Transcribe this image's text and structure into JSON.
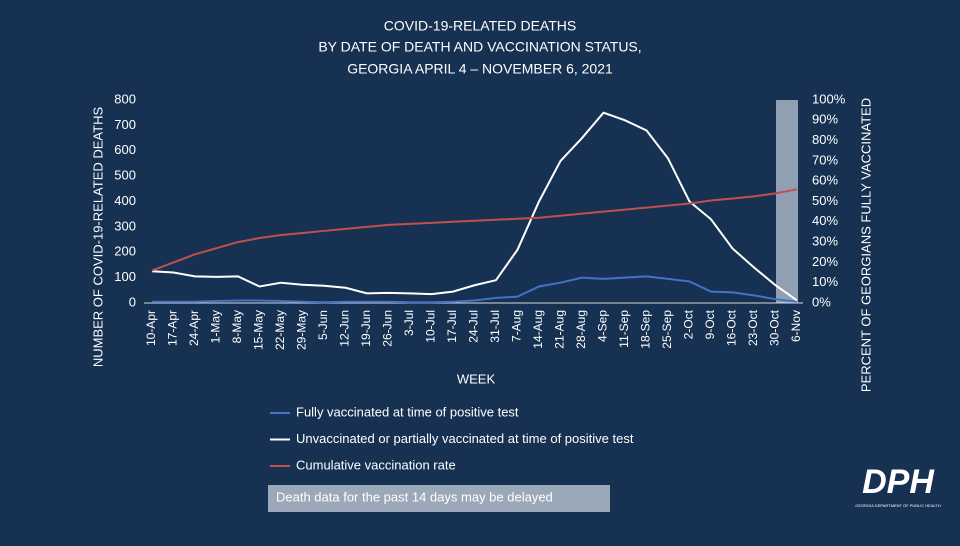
{
  "chart_data": {
    "type": "line",
    "title": [
      "COVID-19-RELATED DEATHS",
      "BY DATE OF DEATH AND VACCINATION STATUS,",
      "GEORGIA APRIL 4 – NOVEMBER 6, 2021"
    ],
    "x_label": "WEEK",
    "y_label": "NUMBER OF COVID-19-RELATED DEATHS",
    "y2_label": "PERCENT OF GEORGIANS FULLY VACCINATED",
    "categories": [
      "10-Apr",
      "17-Apr",
      "24-Apr",
      "1-May",
      "8-May",
      "15-May",
      "22-May",
      "29-May",
      "5-Jun",
      "12-Jun",
      "19-Jun",
      "26-Jun",
      "3-Jul",
      "10-Jul",
      "17-Jul",
      "24-Jul",
      "31-Jul",
      "7-Aug",
      "14-Aug",
      "21-Aug",
      "28-Aug",
      "4-Sep",
      "11-Sep",
      "18-Sep",
      "25-Sep",
      "2-Oct",
      "9-Oct",
      "16-Oct",
      "23-Oct",
      "30-Oct",
      "6-Nov"
    ],
    "series": [
      {
        "name": "Fully vaccinated at time of positive test",
        "color": "#4472c4",
        "values": [
          5,
          5,
          5,
          8,
          10,
          10,
          8,
          5,
          3,
          5,
          5,
          5,
          3,
          3,
          5,
          10,
          20,
          25,
          65,
          80,
          100,
          95,
          100,
          105,
          95,
          85,
          45,
          42,
          30,
          15,
          5
        ]
      },
      {
        "name": "Unvaccinated or partially vaccinated at time of positive test",
        "color": "#ffffff",
        "values": [
          125,
          120,
          105,
          103,
          105,
          65,
          80,
          72,
          68,
          60,
          38,
          40,
          38,
          35,
          45,
          70,
          90,
          210,
          400,
          560,
          650,
          750,
          720,
          680,
          570,
          400,
          330,
          215,
          140,
          70,
          10
        ]
      },
      {
        "name": "Cumulative vaccination rate",
        "color": "#c0504d",
        "axis": "y2",
        "values": [
          16,
          20,
          24,
          27,
          30,
          32,
          33.5,
          34.5,
          35.5,
          36.5,
          37.5,
          38.5,
          39,
          39.5,
          40,
          40.5,
          41,
          41.5,
          42,
          43,
          44,
          45,
          46,
          47,
          48,
          49,
          50.5,
          51.5,
          52.5,
          54,
          56
        ]
      }
    ],
    "ylim": [
      0,
      800
    ],
    "yticks": [
      0,
      100,
      200,
      300,
      400,
      500,
      600,
      700,
      800
    ],
    "y2lim": [
      0,
      100
    ],
    "y2ticks": [
      {
        "value": 0,
        "label": "0%"
      },
      {
        "value": 10,
        "label": "10%"
      },
      {
        "value": 20,
        "label": "20%"
      },
      {
        "value": 30,
        "label": "30%"
      },
      {
        "value": 40,
        "label": "40%"
      },
      {
        "value": 50,
        "label": "50%"
      },
      {
        "value": 60,
        "label": "60%"
      },
      {
        "value": 70,
        "label": "70%"
      },
      {
        "value": 80,
        "label": "80%"
      },
      {
        "value": 90,
        "label": "90%"
      },
      {
        "value": 100,
        "label": "100%"
      }
    ],
    "note": "Death data for the past 14 days may be delayed",
    "logo": {
      "text": "DPH",
      "subtitle": "GEORGIA DEPARTMENT OF PUBLIC HEALTH"
    }
  }
}
